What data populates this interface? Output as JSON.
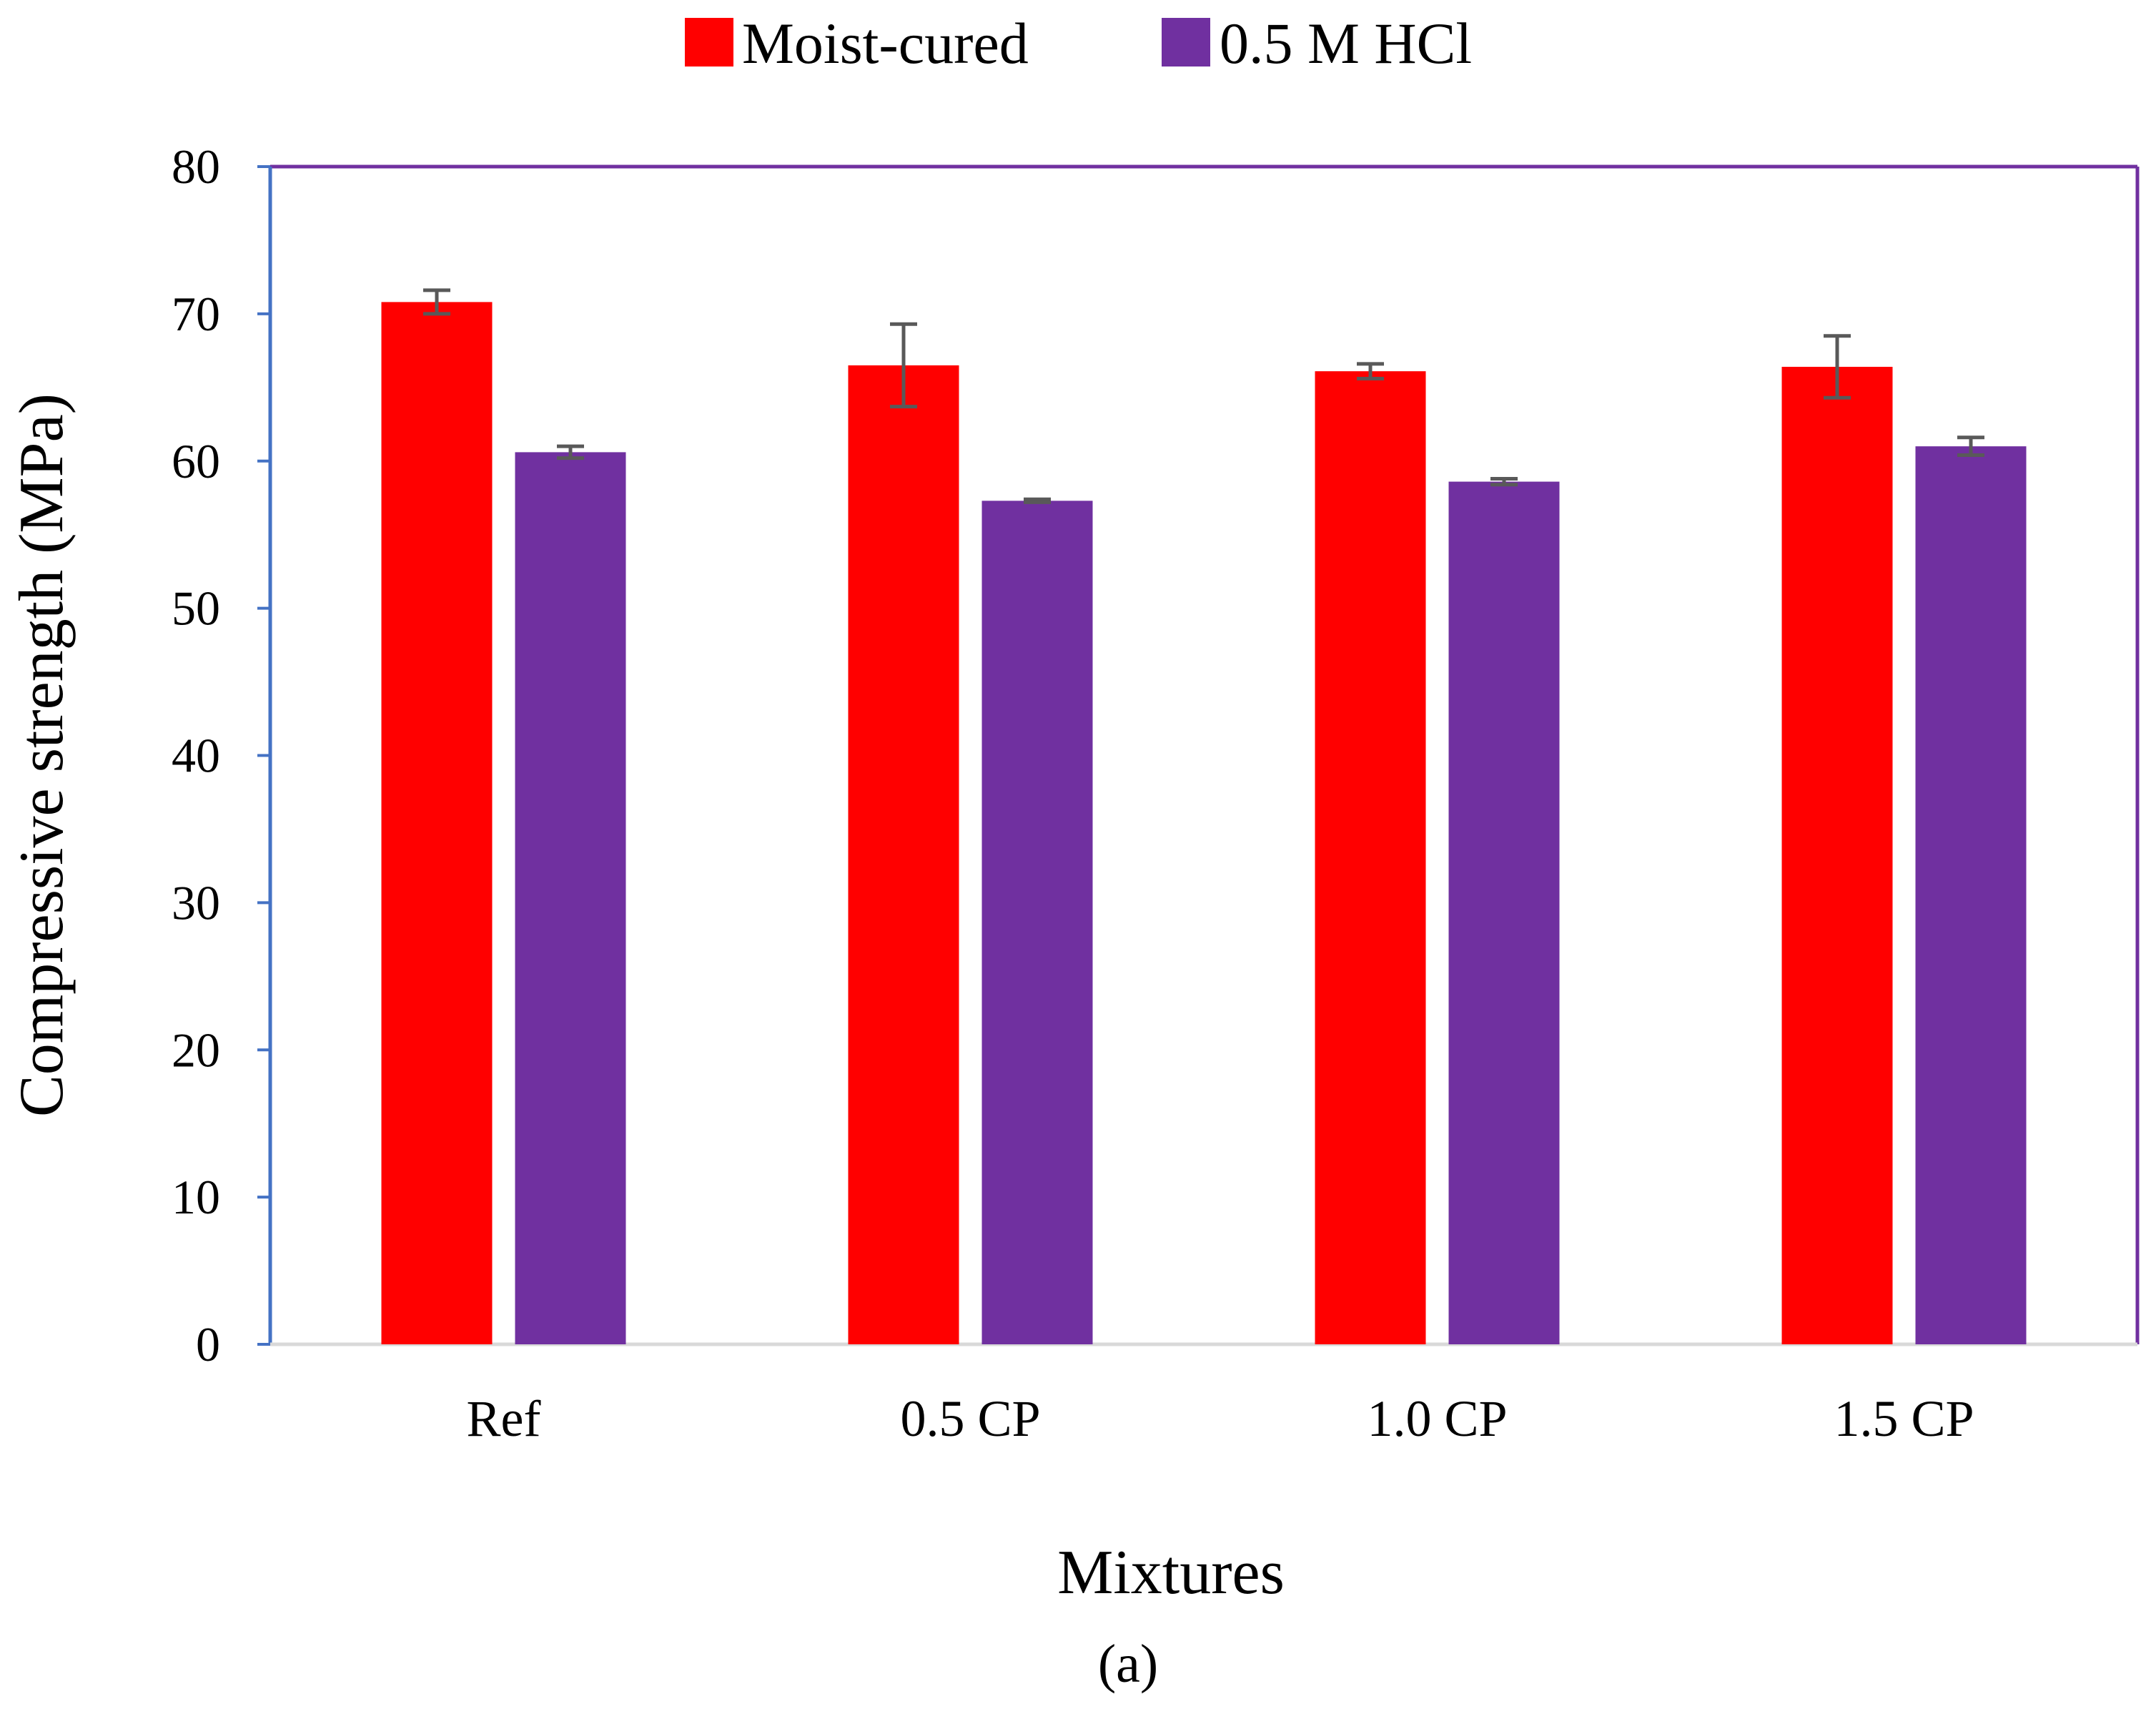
{
  "chart_data": {
    "type": "bar",
    "title": "",
    "xlabel": "Mixtures",
    "ylabel": "Compressive strength (MPa)",
    "panel_label": "(a)",
    "categories": [
      "Ref",
      "0.5 CP",
      "1.0 CP",
      "1.5 CP"
    ],
    "ylim": [
      0,
      80
    ],
    "yticks": [
      0,
      10,
      20,
      30,
      40,
      50,
      60,
      70,
      80
    ],
    "grid": false,
    "legend_position": "top-center",
    "series": [
      {
        "name": "Moist-cured",
        "color": "#ff0000",
        "values": [
          70.8,
          66.5,
          66.1,
          66.4
        ],
        "errors": [
          0.8,
          2.8,
          0.5,
          2.1
        ]
      },
      {
        "name": "0.5 M HCl",
        "color": "#7030a0",
        "values": [
          60.6,
          57.3,
          58.6,
          61.0
        ],
        "errors": [
          0.4,
          0.1,
          0.2,
          0.6
        ]
      }
    ],
    "colors": {
      "left_axis": "#4472c4",
      "frame": "#7030a0",
      "baseline": "#d9d9d9",
      "error_bar": "#595959"
    }
  }
}
